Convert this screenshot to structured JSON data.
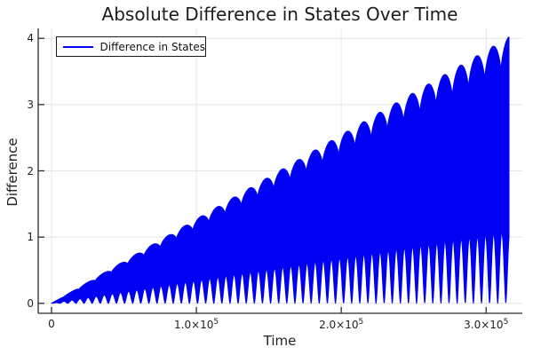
{
  "title": "Absolute Difference in States Over Time",
  "legend": {
    "label": "Difference in States"
  },
  "axes": {
    "xlabel": "Time",
    "ylabel": "Difference",
    "x_ticks": [
      {
        "m": "0",
        "e": "",
        "value": 0
      },
      {
        "m": "1.0×10",
        "e": "5",
        "value": 100000
      },
      {
        "m": "2.0×10",
        "e": "5",
        "value": 200000
      },
      {
        "m": "3.0×10",
        "e": "5",
        "value": 300000
      }
    ],
    "y_ticks": [
      {
        "label": "0",
        "value": 0
      },
      {
        "label": "1",
        "value": 1
      },
      {
        "label": "2",
        "value": 2
      },
      {
        "label": "3",
        "value": 3
      },
      {
        "label": "4",
        "value": 4
      }
    ]
  },
  "colors": {
    "line": "#0000f2",
    "grid": "#e4e4e4",
    "spine": "#2b2b2b",
    "text": "#1f1f1f",
    "background": "#ffffff",
    "legend_border": "#1a1a1a"
  },
  "chart_data": {
    "type": "line",
    "title": "Absolute Difference in States Over Time",
    "xlabel": "Time",
    "ylabel": "Difference",
    "grid": true,
    "legend_position": "top-left",
    "series": [
      {
        "name": "Difference in States",
        "color": "#0000f2"
      }
    ],
    "xlim": [
      -9200,
      325000
    ],
    "ylim": [
      -0.15,
      4.15
    ],
    "x_tick_values": [
      0,
      100000,
      200000,
      300000
    ],
    "y_tick_values": [
      0,
      1,
      2,
      3,
      4
    ],
    "signal_model": {
      "description": "Dense rapid oscillation between a scalloped linearly-growing upper beat envelope and a notched lower envelope; rendered as a solid filled mass",
      "t_start": 0,
      "t_end": 315800,
      "envelope": "linear",
      "end_peak_value": 4.02,
      "beat_period": 11200,
      "notch_period": 5600,
      "upper_dip_ratio": 0.88,
      "lower_notch_height_ratio": 0.27,
      "upper_arch_exponent": 0.6,
      "lower_arch_exponent": 1.5
    },
    "bump_peaks": {
      "t": [
        2200,
        13400,
        24600,
        35800,
        47000,
        58200,
        69400,
        80600,
        91800,
        103000,
        114200,
        125400,
        136600,
        147800,
        159000,
        170200,
        181400,
        192600,
        203800,
        215000,
        226200,
        237400,
        248600,
        259800,
        271000,
        282200,
        293400,
        304600,
        315800
      ],
      "value": [
        0.03,
        0.17,
        0.31,
        0.46,
        0.6,
        0.74,
        0.88,
        1.03,
        1.17,
        1.31,
        1.45,
        1.6,
        1.74,
        1.88,
        2.02,
        2.17,
        2.31,
        2.45,
        2.59,
        2.74,
        2.88,
        3.02,
        3.16,
        3.31,
        3.45,
        3.59,
        3.73,
        3.88,
        4.02
      ]
    }
  }
}
